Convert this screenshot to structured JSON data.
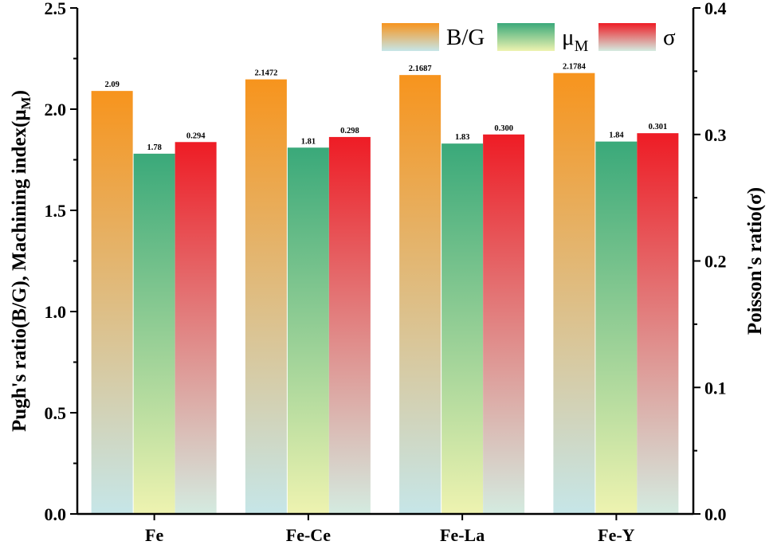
{
  "chart_data": {
    "type": "bar",
    "categories": [
      "Fe",
      "Fe-Ce",
      "Fe-La",
      "Fe-Y"
    ],
    "series": [
      {
        "name": "B/G",
        "axis": "left",
        "values": [
          2.09,
          2.1472,
          2.1687,
          2.1784
        ],
        "labels": [
          "2.09",
          "2.1472",
          "2.1687",
          "2.1784"
        ],
        "color_top": "#f7941d",
        "color_bottom": "#c6e6e8"
      },
      {
        "name": "μ",
        "subscript": "M",
        "axis": "left",
        "values": [
          1.78,
          1.81,
          1.83,
          1.84
        ],
        "labels": [
          "1.78",
          "1.81",
          "1.83",
          "1.84"
        ],
        "color_top": "#3aa97a",
        "color_bottom": "#eef3b0"
      },
      {
        "name": "σ",
        "axis": "right",
        "values": [
          0.294,
          0.298,
          0.3,
          0.301
        ],
        "labels": [
          "0.294",
          "0.298",
          "0.300",
          "0.301"
        ],
        "color_top": "#ee1c25",
        "color_bottom": "#d4ebe0"
      }
    ],
    "ylabel": "Pugh's ratio(B/G), Machining index(μ",
    "ylabel_sub": "M",
    "ylabel_end": ")",
    "y2label": "Poisson's ratio(σ)",
    "ylim": [
      0,
      2.5
    ],
    "y2lim": [
      0,
      0.4
    ],
    "yticks": [
      "0.0",
      "0.5",
      "1.0",
      "1.5",
      "2.0",
      "2.5"
    ],
    "y2ticks": [
      "0.0",
      "0.1",
      "0.2",
      "0.3",
      "0.4"
    ],
    "legend_position": "top-right"
  }
}
